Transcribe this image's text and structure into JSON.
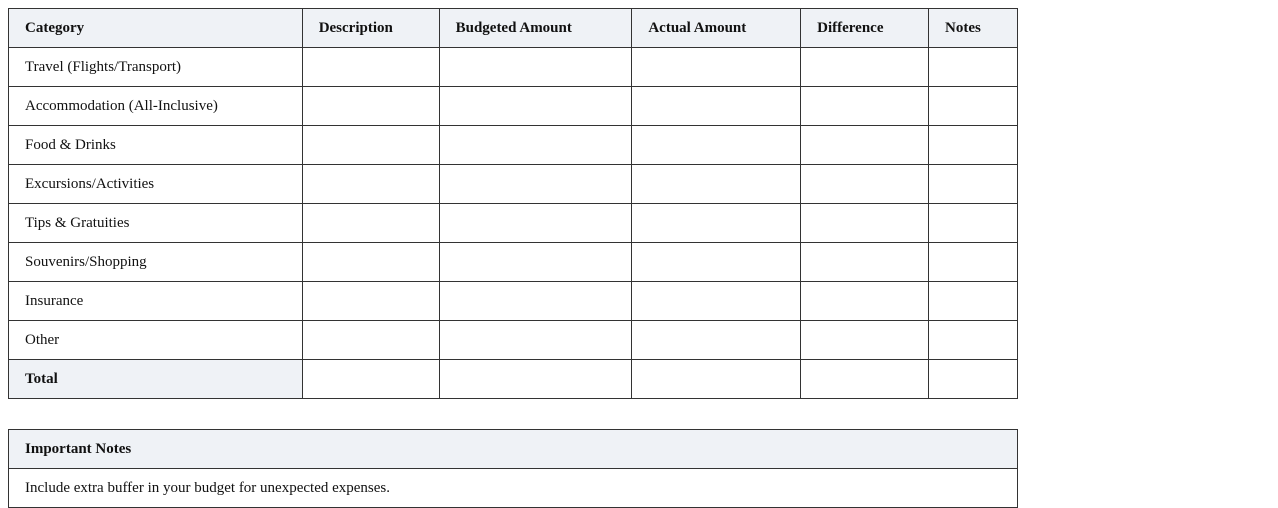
{
  "budget_table": {
    "headers": [
      "Category",
      "Description",
      "Budgeted Amount",
      "Actual Amount",
      "Difference",
      "Notes"
    ],
    "rows": [
      "Travel (Flights/Transport)",
      "Accommodation (All-Inclusive)",
      "Food & Drinks",
      "Excursions/Activities",
      "Tips & Gratuities",
      "Souvenirs/Shopping",
      "Insurance",
      "Other"
    ],
    "total_label": "Total"
  },
  "notes_table": {
    "header": "Important Notes",
    "items": [
      "Include extra buffer in your budget for unexpected expenses."
    ]
  }
}
